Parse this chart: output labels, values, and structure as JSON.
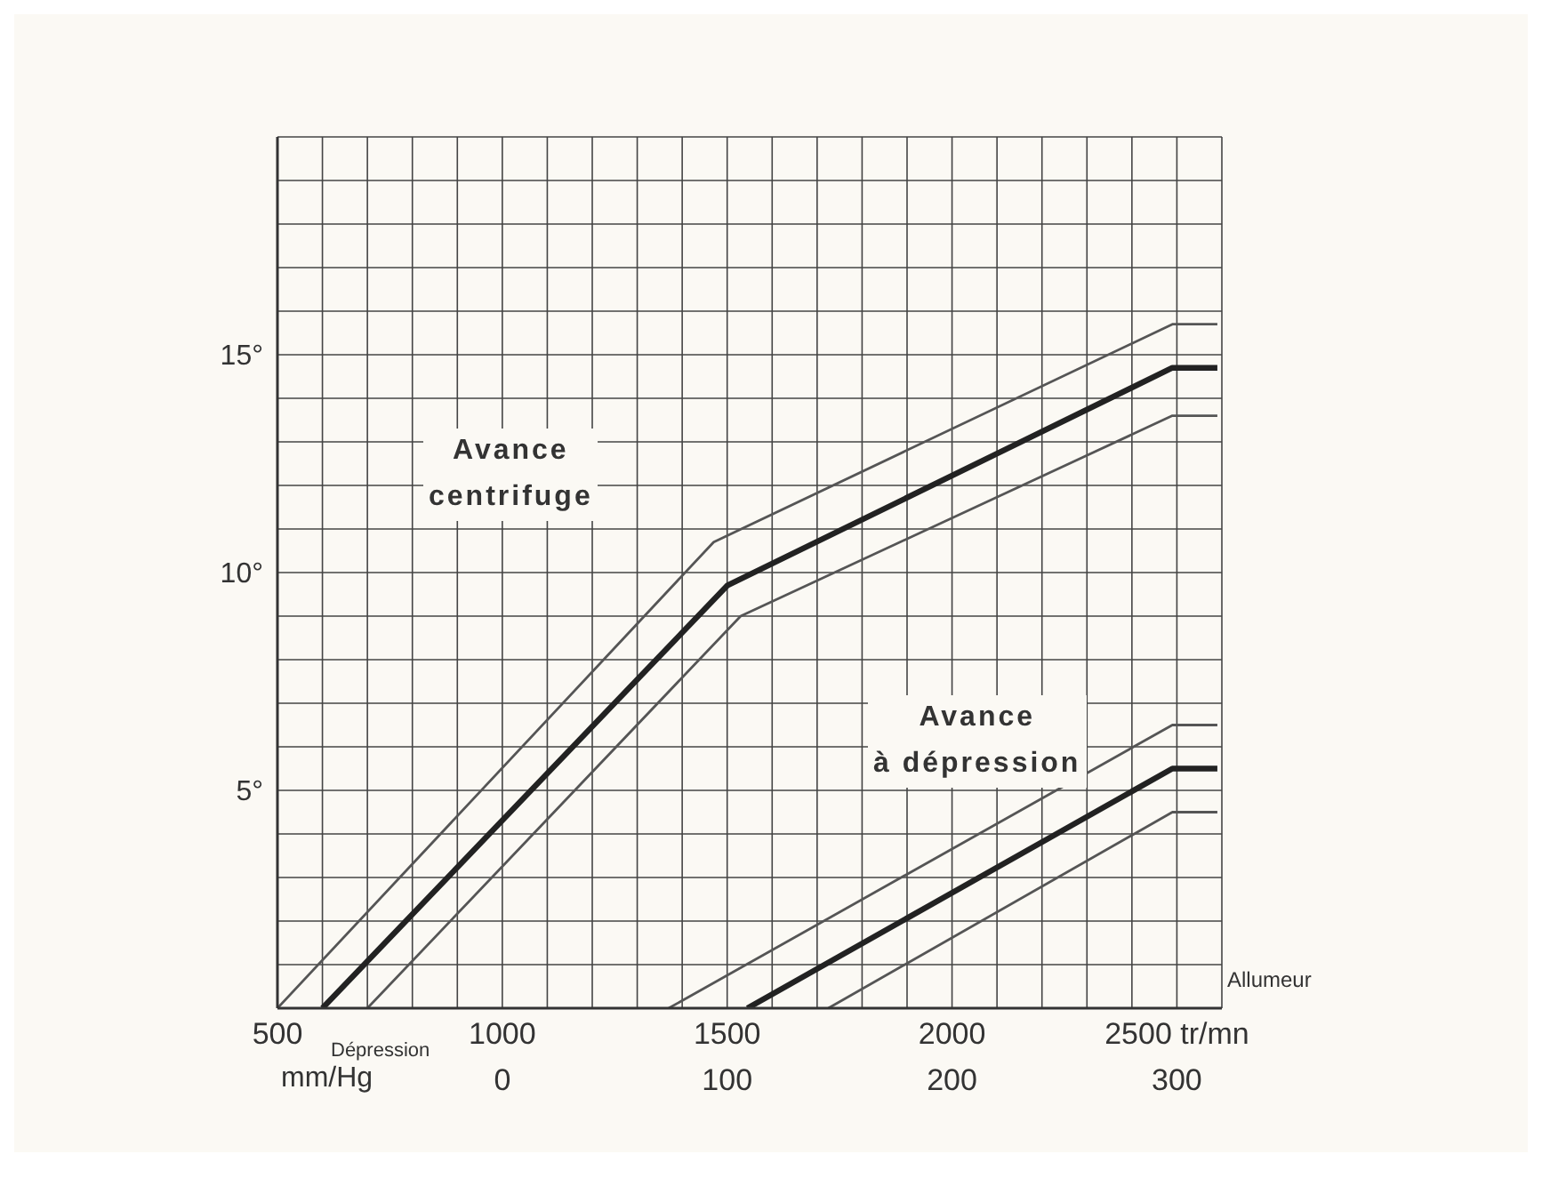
{
  "chart_data": {
    "type": "line",
    "xlabel": "Allumeur",
    "x2label": "Dépression mm/Hg",
    "annotations": [
      "Avance\ncentrifuge",
      "Avance\nà dépression"
    ],
    "xlim": [
      500,
      2600
    ],
    "xticks": [
      500,
      {
        "value": 600,
        "label": null
      },
      {
        "value": 700,
        "label": null
      },
      {
        "value": 800,
        "label": null
      },
      {
        "value": 900,
        "label": null
      },
      1000,
      {
        "value": 1100,
        "label": null
      },
      {
        "value": 1200,
        "label": null
      },
      {
        "value": 1300,
        "label": null
      },
      {
        "value": 1400,
        "label": null
      },
      1500,
      {
        "value": 1600,
        "label": null
      },
      {
        "value": 1700,
        "label": null
      },
      {
        "value": 1800,
        "label": null
      },
      {
        "value": 1900,
        "label": null
      },
      2000,
      {
        "value": 2100,
        "label": null
      },
      {
        "value": 2200,
        "label": null
      },
      {
        "value": 2300,
        "label": null
      },
      {
        "value": 2400,
        "label": null
      },
      {
        "value": 2500,
        "label": "2500 tr/mn"
      }
    ],
    "x2lim": [
      -100,
      320
    ],
    "x2ticks": [
      0,
      100,
      200,
      300
    ],
    "ylim": [
      0,
      20
    ],
    "yticks": [
      {
        "value": 0,
        "label": null
      },
      {
        "value": 1,
        "label": null
      },
      {
        "value": 2,
        "label": null
      },
      {
        "value": 3,
        "label": null
      },
      {
        "value": 4,
        "label": null
      },
      {
        "value": 5,
        "label": "5°"
      },
      {
        "value": 6,
        "label": null
      },
      {
        "value": 7,
        "label": null
      },
      {
        "value": 8,
        "label": null
      },
      {
        "value": 9,
        "label": null
      },
      {
        "value": 10,
        "label": "10°"
      },
      {
        "value": 11,
        "label": null
      },
      {
        "value": 12,
        "label": null
      },
      {
        "value": 13,
        "label": null
      },
      {
        "value": 14,
        "label": null
      },
      {
        "value": 15,
        "label": "15°"
      },
      {
        "value": 16,
        "label": null
      },
      {
        "value": 17,
        "label": null
      },
      {
        "value": 18,
        "label": null
      },
      {
        "value": 19,
        "label": null
      },
      {
        "value": 20,
        "label": null
      }
    ],
    "grid": true,
    "legend": false,
    "marker": "none",
    "line_style": "solid",
    "series": [
      {
        "color": "#555555",
        "x": [
          500,
          1470,
          2490,
          2590
        ],
        "values": [
          0,
          10.7,
          15.7,
          15.7
        ]
      },
      {
        "color": "#222222",
        "x": [
          600,
          1500,
          2490,
          2590
        ],
        "values": [
          0,
          9.7,
          14.7,
          14.7
        ]
      },
      {
        "color": "#555555",
        "x": [
          700,
          1530,
          2490,
          2590
        ],
        "values": [
          0,
          9.0,
          13.6,
          13.6
        ]
      },
      {
        "color": "#555555",
        "axis": "x2",
        "x": [
          74,
          298,
          318
        ],
        "values": [
          0,
          6.5,
          6.5
        ]
      },
      {
        "color": "#222222",
        "axis": "x2",
        "x": [
          109,
          298,
          318
        ],
        "values": [
          0,
          5.5,
          5.5
        ]
      },
      {
        "color": "#555555",
        "axis": "x2",
        "x": [
          145,
          298,
          318
        ],
        "values": [
          0,
          4.5,
          4.5
        ]
      }
    ]
  }
}
